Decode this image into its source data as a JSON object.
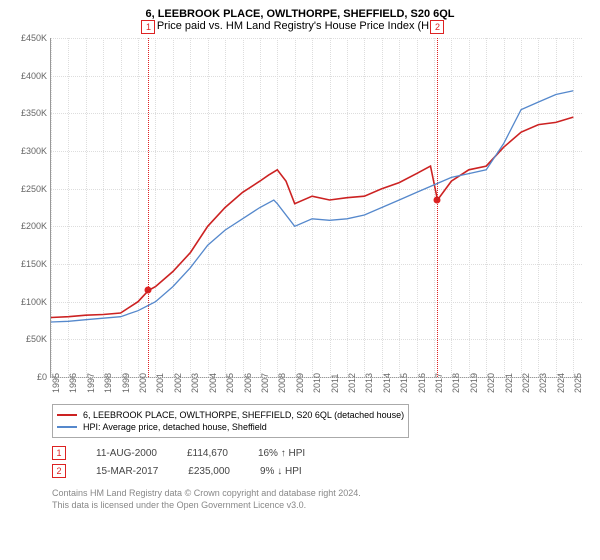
{
  "title": "6, LEEBROOK PLACE, OWLTHORPE, SHEFFIELD, S20 6QL",
  "subtitle": "Price paid vs. HM Land Registry's House Price Index (HPI)",
  "chart": {
    "type": "line",
    "ylim": [
      0,
      450000
    ],
    "ytick_step": 50000,
    "yticks": [
      "£0",
      "£50K",
      "£100K",
      "£150K",
      "£200K",
      "£250K",
      "£300K",
      "£350K",
      "£400K",
      "£450K"
    ],
    "xmin": 1995,
    "xmax": 2025.5,
    "xticks": [
      1995,
      1996,
      1997,
      1998,
      1999,
      2000,
      2001,
      2002,
      2003,
      2004,
      2005,
      2006,
      2007,
      2008,
      2009,
      2010,
      2011,
      2012,
      2013,
      2014,
      2015,
      2016,
      2017,
      2018,
      2019,
      2020,
      2021,
      2022,
      2023,
      2024,
      2025
    ],
    "grid_color": "#dddddd",
    "background_color": "#ffffff",
    "series": [
      {
        "name": "6, LEEBROOK PLACE, OWLTHORPE, SHEFFIELD, S20 6QL (detached house)",
        "color": "#cc2222",
        "width": 1.6,
        "points": [
          [
            1995,
            79000
          ],
          [
            1996,
            80000
          ],
          [
            1997,
            82000
          ],
          [
            1998,
            83000
          ],
          [
            1999,
            85000
          ],
          [
            2000,
            100000
          ],
          [
            2000.6,
            115000
          ],
          [
            2001,
            120000
          ],
          [
            2002,
            140000
          ],
          [
            2003,
            165000
          ],
          [
            2004,
            200000
          ],
          [
            2005,
            225000
          ],
          [
            2006,
            245000
          ],
          [
            2007,
            260000
          ],
          [
            2007.5,
            268000
          ],
          [
            2008,
            275000
          ],
          [
            2008.5,
            260000
          ],
          [
            2009,
            230000
          ],
          [
            2010,
            240000
          ],
          [
            2011,
            235000
          ],
          [
            2012,
            238000
          ],
          [
            2013,
            240000
          ],
          [
            2014,
            250000
          ],
          [
            2015,
            258000
          ],
          [
            2016,
            270000
          ],
          [
            2016.8,
            280000
          ],
          [
            2017.2,
            235000
          ],
          [
            2018,
            260000
          ],
          [
            2019,
            275000
          ],
          [
            2020,
            280000
          ],
          [
            2021,
            305000
          ],
          [
            2022,
            325000
          ],
          [
            2023,
            335000
          ],
          [
            2024,
            338000
          ],
          [
            2025,
            345000
          ]
        ]
      },
      {
        "name": "HPI: Average price, detached house, Sheffield",
        "color": "#5588cc",
        "width": 1.3,
        "points": [
          [
            1995,
            73000
          ],
          [
            1996,
            74000
          ],
          [
            1997,
            76000
          ],
          [
            1998,
            78000
          ],
          [
            1999,
            80000
          ],
          [
            2000,
            88000
          ],
          [
            2001,
            100000
          ],
          [
            2002,
            120000
          ],
          [
            2003,
            145000
          ],
          [
            2004,
            175000
          ],
          [
            2005,
            195000
          ],
          [
            2006,
            210000
          ],
          [
            2007,
            225000
          ],
          [
            2007.8,
            235000
          ],
          [
            2008,
            230000
          ],
          [
            2009,
            200000
          ],
          [
            2010,
            210000
          ],
          [
            2011,
            208000
          ],
          [
            2012,
            210000
          ],
          [
            2013,
            215000
          ],
          [
            2014,
            225000
          ],
          [
            2015,
            235000
          ],
          [
            2016,
            245000
          ],
          [
            2017,
            255000
          ],
          [
            2018,
            265000
          ],
          [
            2019,
            270000
          ],
          [
            2020,
            275000
          ],
          [
            2021,
            310000
          ],
          [
            2022,
            355000
          ],
          [
            2023,
            365000
          ],
          [
            2024,
            375000
          ],
          [
            2025,
            380000
          ]
        ]
      }
    ],
    "highlights": [
      {
        "x": 2000.6,
        "label": "1",
        "dot_y": 115000
      },
      {
        "x": 2017.2,
        "label": "2",
        "dot_y": 235000
      }
    ]
  },
  "legend": {
    "items": [
      {
        "color": "#cc2222",
        "label": "6, LEEBROOK PLACE, OWLTHORPE, SHEFFIELD, S20 6QL (detached house)"
      },
      {
        "color": "#5588cc",
        "label": "HPI: Average price, detached house, Sheffield"
      }
    ]
  },
  "transactions": [
    {
      "num": "1",
      "date": "11-AUG-2000",
      "price": "£114,670",
      "delta": "16% ↑ HPI"
    },
    {
      "num": "2",
      "date": "15-MAR-2017",
      "price": "£235,000",
      "delta": "9% ↓ HPI"
    }
  ],
  "footer": {
    "line1": "Contains HM Land Registry data © Crown copyright and database right 2024.",
    "line2": "This data is licensed under the Open Government Licence v3.0."
  }
}
